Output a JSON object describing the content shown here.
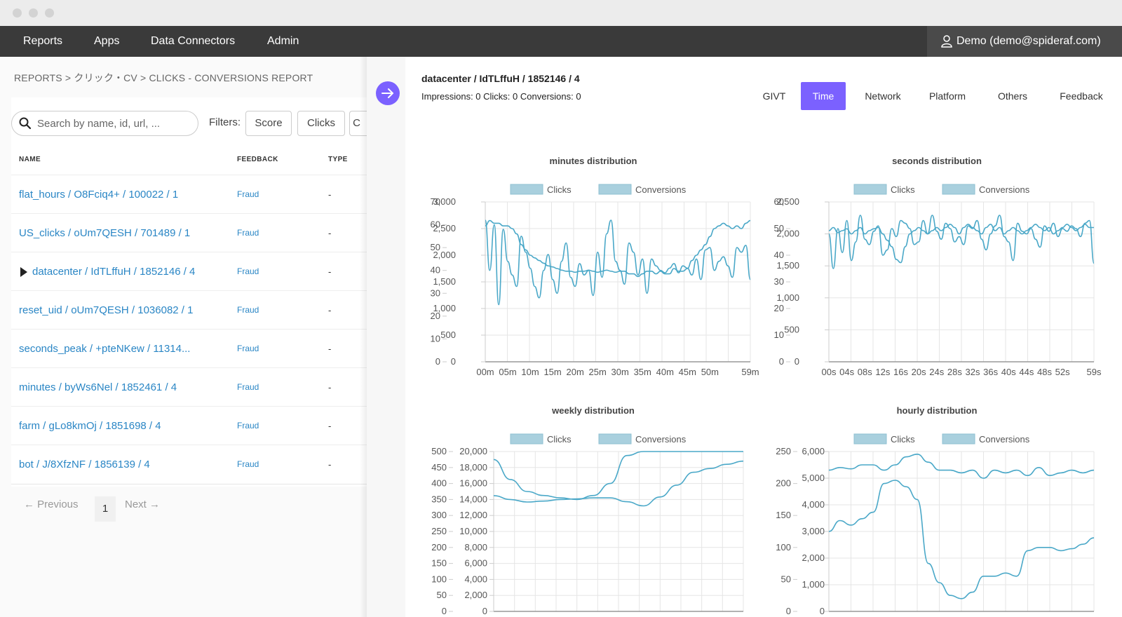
{
  "nav": {
    "items": [
      "Reports",
      "Apps",
      "Data Connectors",
      "Admin"
    ],
    "user": "Demo (demo@spideraf.com)"
  },
  "breadcrumb": "REPORTS > クリック・CV > CLICKS - CONVERSIONS REPORT",
  "search": {
    "placeholder": "Search by name, id, url, ..."
  },
  "filters": {
    "label": "Filters:",
    "buttons": [
      "Score",
      "Clicks",
      "C"
    ]
  },
  "table": {
    "headers": [
      "NAME",
      "FEEDBACK",
      "TYPE"
    ],
    "rows": [
      {
        "name": "flat_hours / O8Fciq4+ / 100022 / 1",
        "feedback": "Fraud",
        "type": "-"
      },
      {
        "name": "US_clicks / oUm7QESH / 701489 / 1",
        "feedback": "Fraud",
        "type": "-"
      },
      {
        "name": "datacenter / IdTLffuH / 1852146 / 4",
        "feedback": "Fraud",
        "type": "-"
      },
      {
        "name": "reset_uid / oUm7QESH / 1036082 / 1",
        "feedback": "Fraud",
        "type": "-"
      },
      {
        "name": "seconds_peak / +pteNKew / 11314...",
        "feedback": "Fraud",
        "type": "-"
      },
      {
        "name": "minutes / byWs6Nel / 1852461 / 4",
        "feedback": "Fraud",
        "type": "-"
      },
      {
        "name": "farm / gLo8kmOj / 1851698 / 4",
        "feedback": "Fraud",
        "type": "-"
      },
      {
        "name": "bot / J/8XfzNF / 1856139 / 4",
        "feedback": "Fraud",
        "type": "-"
      }
    ]
  },
  "pager": {
    "previous": "← Previous",
    "page": "1",
    "next": "Next →"
  },
  "detail": {
    "title": "datacenter / IdTLffuH / 1852146 / 4",
    "stats": "Impressions: 0 Clicks: 0 Conversions: 0",
    "tabs": [
      "GIVT",
      "Time",
      "Network",
      "Platform",
      "Others",
      "Feedback"
    ],
    "active_tab": "Time"
  },
  "colors": {
    "accent": "#7b61ff",
    "link": "#2a86c5",
    "series": "#4aa8c8",
    "legend_fill": "#a9d0de",
    "nav_bg": "#3a3a3a"
  },
  "chart_data": [
    {
      "type": "line",
      "title": "minutes distribution",
      "legend": [
        "Clicks",
        "Conversions"
      ],
      "ylim_left": [
        0,
        3000
      ],
      "yticks_left": [
        0,
        500,
        1000,
        1500,
        2000,
        2500,
        3000
      ],
      "ylim_right": [
        0,
        70
      ],
      "yticks_right": [
        0,
        10,
        20,
        30,
        40,
        50,
        60,
        70
      ],
      "xticks": [
        "00m",
        "05m",
        "10m",
        "15m",
        "20m",
        "25m",
        "30m",
        "35m",
        "40m",
        "45m",
        "50m",
        "59m"
      ],
      "xtick_positions": [
        0,
        5,
        10,
        15,
        20,
        25,
        30,
        35,
        40,
        45,
        50,
        59
      ],
      "series": [
        {
          "name": "Clicks",
          "axis": "left",
          "values": [
            2550,
            2650,
            2600,
            2600,
            2550,
            2550,
            2500,
            2400,
            2200,
            2100,
            2000,
            1950,
            1900,
            1850,
            1800,
            1780,
            1750,
            1720,
            1700,
            1700,
            1680,
            1700,
            1700,
            1720,
            1700,
            1680,
            1700,
            1720,
            1700,
            1680,
            1700,
            1700,
            1650,
            1650,
            1600,
            1650,
            1700,
            1700,
            1650,
            1700,
            1650,
            1650,
            1750,
            1700,
            1700,
            1750,
            1900,
            2000,
            2100,
            2200,
            2350,
            2500,
            2550,
            2600,
            2550,
            2500,
            2550,
            2500,
            2600,
            2650
          ]
        },
        {
          "name": "Conversions",
          "axis": "right",
          "values": [
            62,
            40,
            60,
            25,
            58,
            44,
            38,
            33,
            55,
            48,
            41,
            33,
            28,
            40,
            47,
            36,
            30,
            44,
            52,
            37,
            33,
            43,
            38,
            40,
            29,
            48,
            37,
            56,
            62,
            44,
            40,
            34,
            52,
            48,
            38,
            45,
            30,
            45,
            42,
            40,
            39,
            41,
            43,
            39,
            42,
            41,
            38,
            45,
            36,
            49,
            50,
            40,
            44,
            46,
            42,
            37,
            50,
            48,
            51,
            36
          ]
        }
      ]
    },
    {
      "type": "line",
      "title": "seconds distribution",
      "legend": [
        "Clicks",
        "Conversions"
      ],
      "ylim_left": [
        0,
        2500
      ],
      "yticks_left": [
        0,
        500,
        1000,
        1500,
        2000,
        2500
      ],
      "ylim_right": [
        0,
        60
      ],
      "yticks_right": [
        0,
        10,
        20,
        30,
        40,
        50,
        60
      ],
      "xticks": [
        "00s",
        "04s",
        "08s",
        "12s",
        "16s",
        "20s",
        "24s",
        "28s",
        "32s",
        "36s",
        "40s",
        "44s",
        "48s",
        "52s",
        "59s"
      ],
      "xtick_positions": [
        0,
        4,
        8,
        12,
        16,
        20,
        24,
        28,
        32,
        36,
        40,
        44,
        48,
        52,
        59
      ],
      "series": [
        {
          "name": "Clicks",
          "axis": "left",
          "values": [
            2050,
            2100,
            2020,
            2050,
            2080,
            2000,
            2050,
            2100,
            2000,
            2050,
            2080,
            2100,
            2000,
            1900,
            1800,
            1600,
            1550,
            1800,
            2000,
            2050,
            2100,
            2050,
            2000,
            2050,
            2100,
            2050,
            2100,
            2150,
            2100,
            2000,
            2100,
            2150,
            2100,
            2050,
            2000,
            2100,
            2150,
            2050,
            2100,
            2000,
            2050,
            2100,
            2050,
            2000,
            2050,
            2100,
            2150,
            2100,
            2050,
            2100,
            2000,
            2050,
            2100,
            2150,
            2100,
            2050,
            2100,
            2150,
            2100,
            2100
          ]
        },
        {
          "name": "Conversions",
          "axis": "right",
          "values": [
            48,
            35,
            50,
            41,
            53,
            38,
            45,
            55,
            46,
            44,
            49,
            51,
            40,
            42,
            50,
            47,
            53,
            52,
            50,
            44,
            45,
            53,
            48,
            55,
            49,
            46,
            52,
            50,
            45,
            47,
            44,
            51,
            50,
            53,
            46,
            42,
            48,
            51,
            55,
            47,
            45,
            38,
            52,
            49,
            48,
            50,
            46,
            43,
            51,
            49,
            52,
            47,
            50,
            49,
            51,
            50,
            47,
            52,
            53,
            37
          ]
        }
      ]
    },
    {
      "type": "line",
      "title": "weekly distribution",
      "legend": [
        "Clicks",
        "Conversions"
      ],
      "ylim_left": [
        0,
        20000
      ],
      "yticks_left": [
        0,
        2000,
        4000,
        6000,
        8000,
        10000,
        12000,
        14000,
        16000,
        18000,
        20000
      ],
      "ylim_right": [
        0,
        500
      ],
      "yticks_right": [
        0,
        50,
        100,
        150,
        200,
        250,
        300,
        350,
        400,
        450,
        500
      ],
      "series": [
        {
          "name": "Clicks",
          "axis": "left",
          "values": [
            19000,
            16500,
            15000,
            14500,
            14200,
            14000,
            14500,
            16000,
            19500,
            20000,
            20000,
            20000,
            20000,
            20000,
            20000,
            20000
          ]
        },
        {
          "name": "Conversions",
          "axis": "right",
          "values": [
            362,
            350,
            342,
            345,
            350,
            352,
            355,
            355,
            343,
            330,
            358,
            395,
            435,
            447,
            460,
            470
          ]
        }
      ]
    },
    {
      "type": "line",
      "title": "hourly distribution",
      "legend": [
        "Clicks",
        "Conversions"
      ],
      "ylim_left": [
        0,
        6000
      ],
      "yticks_left": [
        0,
        1000,
        2000,
        3000,
        4000,
        5000,
        6000
      ],
      "ylim_right": [
        0,
        250
      ],
      "yticks_right": [
        0,
        50,
        100,
        150,
        200,
        250
      ],
      "series": [
        {
          "name": "Clicks",
          "axis": "left",
          "values": [
            5300,
            5400,
            5350,
            5500,
            5500,
            5300,
            5500,
            5800,
            5900,
            5600,
            5300,
            5300,
            5200,
            5300,
            5000,
            5300,
            5200,
            5300,
            5100,
            5400,
            5100,
            5200,
            5300,
            5200,
            5300
          ]
        },
        {
          "name": "Conversions",
          "axis": "right",
          "values": [
            125,
            142,
            135,
            145,
            155,
            200,
            205,
            195,
            175,
            75,
            45,
            25,
            20,
            30,
            55,
            55,
            60,
            55,
            95,
            100,
            100,
            95,
            98,
            105,
            115
          ]
        }
      ]
    }
  ]
}
